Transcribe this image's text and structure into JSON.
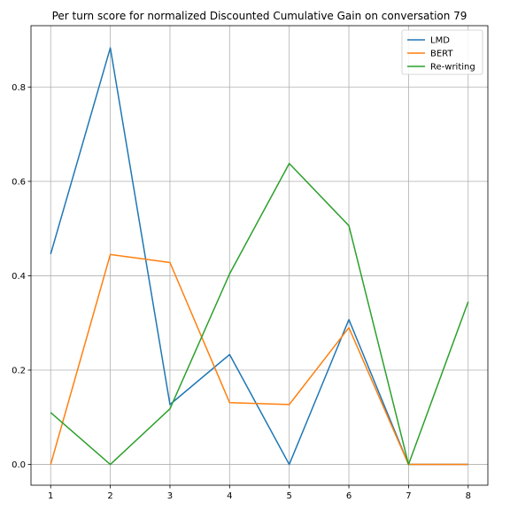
{
  "chart_data": {
    "type": "line",
    "title": "Per turn score for normalized Discounted Cumulative Gain on conversation 79",
    "xlabel": "",
    "ylabel": "",
    "x": [
      1,
      2,
      3,
      4,
      5,
      6,
      7,
      8
    ],
    "xlim": [
      0.67,
      8.33
    ],
    "ylim": [
      -0.044,
      0.93
    ],
    "xticks": [
      "1",
      "2",
      "3",
      "4",
      "5",
      "6",
      "7",
      "8"
    ],
    "yticks": [
      "0.0",
      "0.2",
      "0.4",
      "0.6",
      "0.8"
    ],
    "grid": true,
    "legend_position": "top-right",
    "series": [
      {
        "name": "LMD",
        "color": "#1f77b4",
        "values": [
          0.446,
          0.883,
          0.127,
          0.233,
          0.0,
          0.307,
          0.0,
          0.0
        ]
      },
      {
        "name": "BERT",
        "color": "#ff7f0e",
        "values": [
          0.0,
          0.445,
          0.428,
          0.131,
          0.127,
          0.29,
          0.0,
          0.0
        ]
      },
      {
        "name": "Re-writing",
        "color": "#2ca02c",
        "values": [
          0.11,
          0.0,
          0.118,
          0.404,
          0.638,
          0.506,
          0.0,
          0.345
        ]
      }
    ]
  }
}
